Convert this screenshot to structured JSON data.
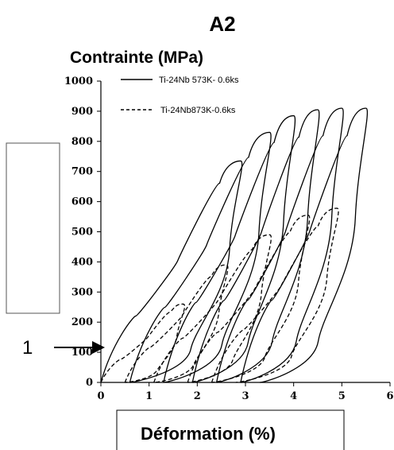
{
  "figure": {
    "panel_label": "A2",
    "marker_label": "1"
  },
  "chart_data": {
    "type": "line",
    "title": "A2",
    "ylabel": "Contrainte (MPa)",
    "xlabel": "Déformation (%)",
    "xlim": [
      0,
      6
    ],
    "ylim": [
      0,
      1000
    ],
    "x_ticks": [
      "0",
      "1",
      "2",
      "3",
      "4",
      "5",
      "6"
    ],
    "y_ticks": [
      "0",
      "100",
      "200",
      "300",
      "400",
      "500",
      "600",
      "700",
      "800",
      "900",
      "1000"
    ],
    "grid": false,
    "legend_position": "top",
    "annotation": {
      "text": "1",
      "points_to_y": 110
    },
    "series": [
      {
        "name": "Ti-24Nb 573K- 0.6ks",
        "style": "solid",
        "cycles": [
          {
            "start": 0.0,
            "peak_x": 2.9,
            "peak_y": 735,
            "end": 0.6
          },
          {
            "start": 0.6,
            "peak_x": 3.5,
            "peak_y": 830,
            "end": 1.3
          },
          {
            "start": 1.3,
            "peak_x": 4.0,
            "peak_y": 885,
            "end": 1.9
          },
          {
            "start": 1.9,
            "peak_x": 4.5,
            "peak_y": 905,
            "end": 2.4
          },
          {
            "start": 2.4,
            "peak_x": 5.0,
            "peak_y": 910,
            "end": 2.9
          },
          {
            "start": 2.9,
            "peak_x": 5.5,
            "peak_y": 910,
            "end": 3.3
          }
        ]
      },
      {
        "name": "Ti-24Nb873K-0.6ks",
        "style": "dashed",
        "cycles": [
          {
            "start": 0.0,
            "peak_x": 1.7,
            "peak_y": 260,
            "end": 0.5
          },
          {
            "start": 0.5,
            "peak_x": 2.6,
            "peak_y": 390,
            "end": 1.1
          },
          {
            "start": 1.1,
            "peak_x": 3.5,
            "peak_y": 490,
            "end": 1.8
          },
          {
            "start": 1.8,
            "peak_x": 4.3,
            "peak_y": 555,
            "end": 2.3
          },
          {
            "start": 2.3,
            "peak_x": 4.9,
            "peak_y": 578,
            "end": 2.8
          }
        ]
      }
    ]
  }
}
